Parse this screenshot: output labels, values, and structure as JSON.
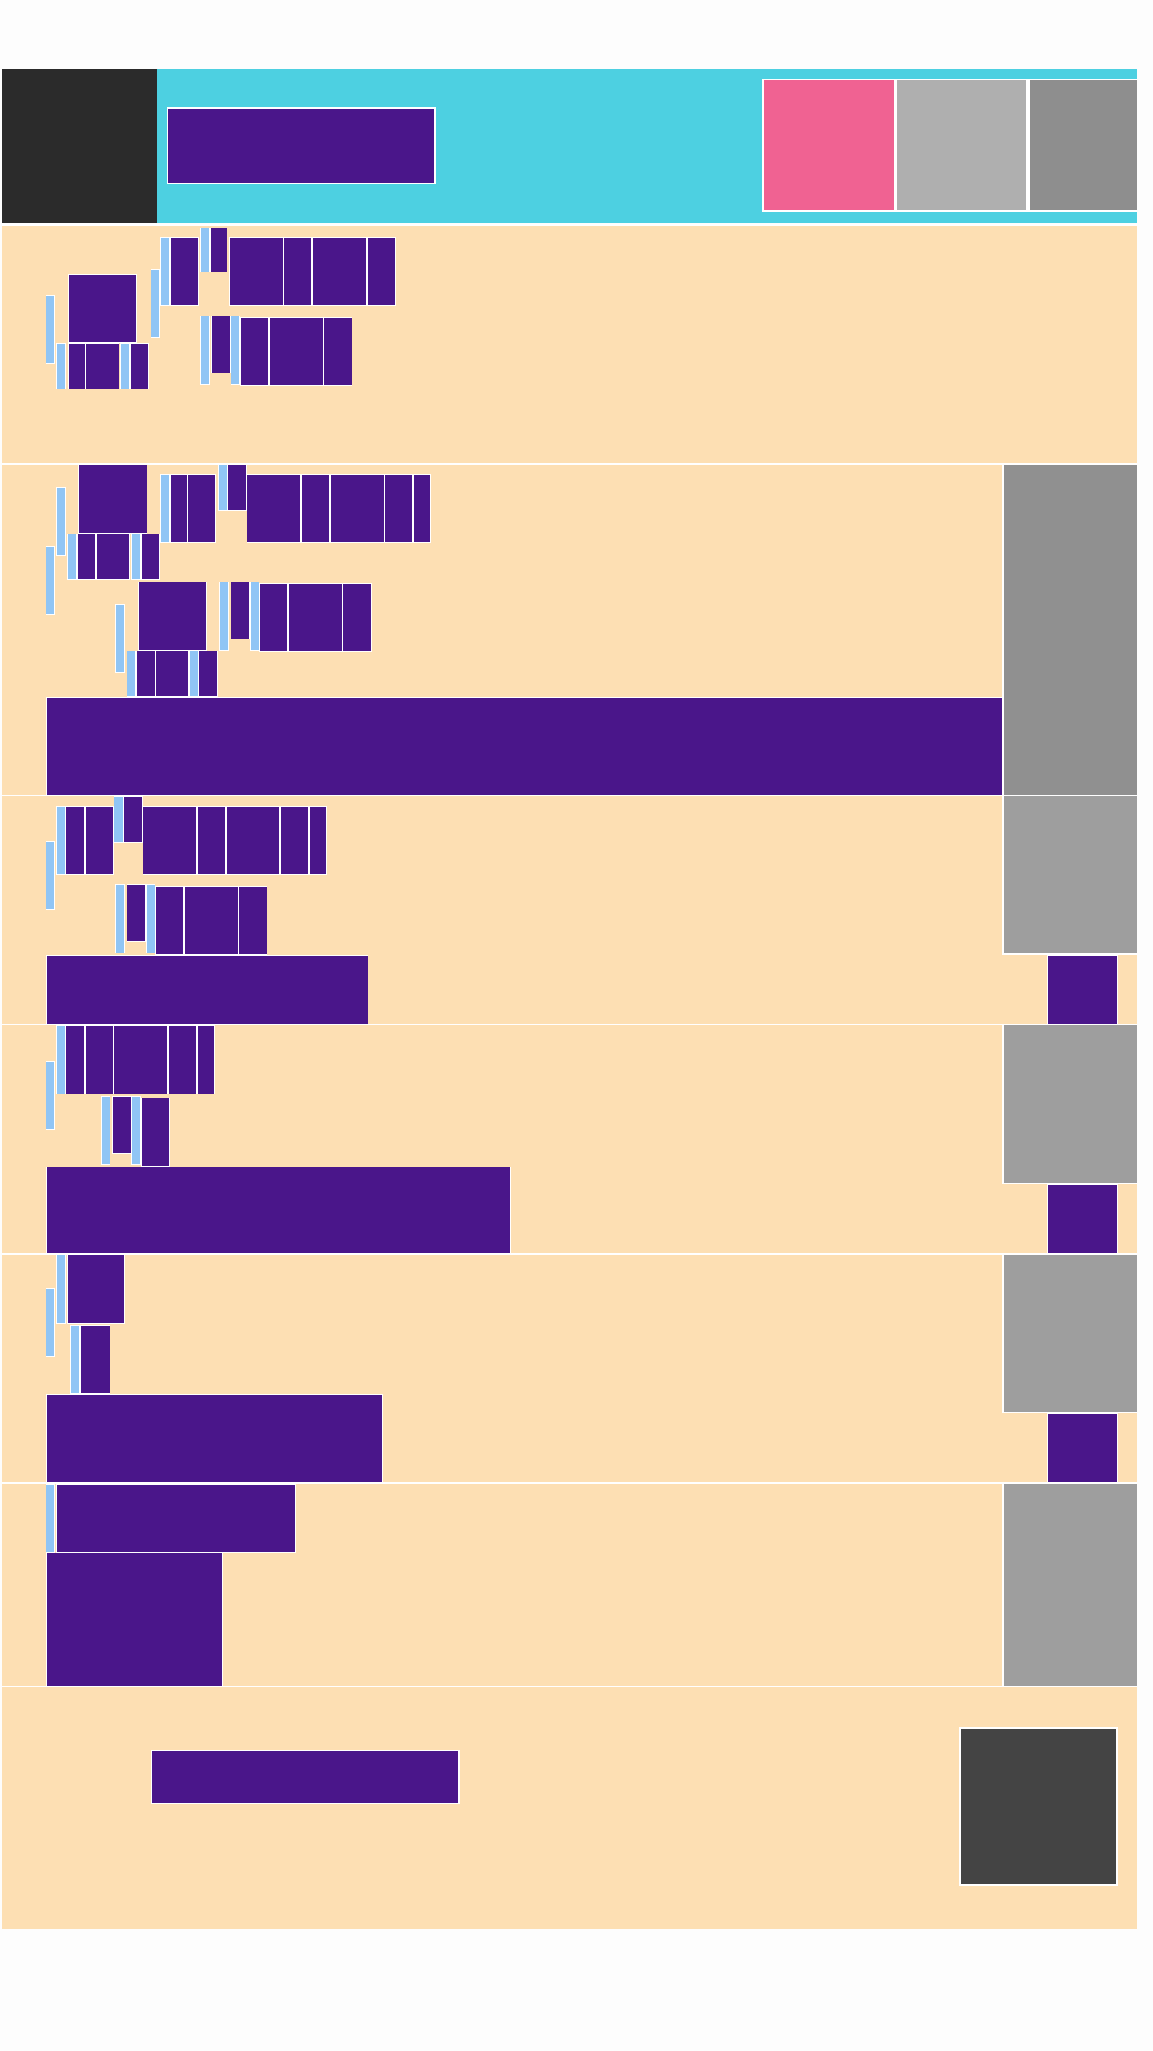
{
  "colors": {
    "page_background": "#fdfdfd",
    "header_background": "#4dd0e1",
    "dark_block": "#2b2b2b",
    "content_background": "#fddfb3",
    "redacted_text": "#4a168a",
    "indent_marker": "#90c5f5",
    "swatch_pink": "#f06292",
    "swatch_light_gray": "#afafaf",
    "swatch_dark_gray": "#8e8e8e",
    "sidebar_gray": "#9e9e9e",
    "footer_dark_box": "#444444"
  },
  "header": {
    "title": ""
  },
  "threads": [
    {
      "has_reply_button": false
    },
    {
      "has_reply_button": true
    },
    {
      "has_reply_button": true
    },
    {
      "has_reply_button": true
    }
  ],
  "footer": {
    "link_text": ""
  }
}
